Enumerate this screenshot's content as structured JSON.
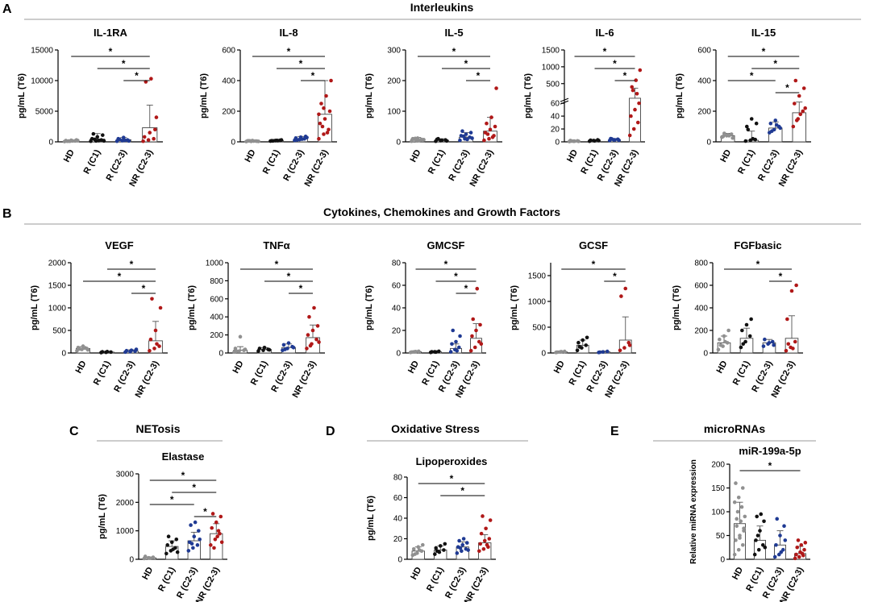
{
  "sections": {
    "A": {
      "letter": "A",
      "title": "Interleukins"
    },
    "B": {
      "letter": "B",
      "title": "Cytokines, Chemokines and Growth Factors"
    },
    "C": {
      "letter": "C",
      "title": "NETosis"
    },
    "D": {
      "letter": "D",
      "title": "Oxidative Stress"
    },
    "E": {
      "letter": "E",
      "title": "microRNAs"
    }
  },
  "colors": {
    "HD": "#909090",
    "R (C1)": "#111111",
    "R (C2-3)": "#1f3a93",
    "NR (C2-3)": "#b01818"
  },
  "chart_data": [
    {
      "type": "bar",
      "title": "IL-1RA",
      "ylabel": "pg/mL (T6)",
      "categories": [
        "HD",
        "R (C1)",
        "R (C2-3)",
        "NR (C2-3)"
      ],
      "ylim": [
        0,
        15000
      ],
      "yticks": [
        0,
        5000,
        10000,
        15000
      ],
      "tick_labels": [
        "0",
        "5000",
        "10000",
        "15000"
      ],
      "values": [
        150,
        450,
        350,
        2300
      ],
      "errors": [
        120,
        900,
        350,
        3700
      ],
      "points": [
        [
          50,
          100,
          150,
          200,
          250,
          300,
          100,
          150,
          200,
          120
        ],
        [
          100,
          150,
          300,
          500,
          800,
          1100,
          1300,
          200,
          150,
          400
        ],
        [
          100,
          200,
          300,
          500,
          700,
          150,
          400,
          250
        ],
        [
          100,
          300,
          500,
          800,
          1500,
          2000,
          9800,
          10300,
          4000
        ]
      ],
      "comparisons": [
        [
          0,
          3
        ],
        [
          1,
          3
        ],
        [
          2,
          3
        ]
      ],
      "significance": "*"
    },
    {
      "type": "bar",
      "title": "IL-8",
      "ylabel": "pg/mL (T6)",
      "categories": [
        "HD",
        "R (C1)",
        "R (C2-3)",
        "NR (C2-3)"
      ],
      "ylim": [
        0,
        600
      ],
      "yticks": [
        0,
        200,
        400,
        600
      ],
      "tick_labels": [
        "0",
        "200",
        "400",
        "600"
      ],
      "values": [
        5,
        8,
        20,
        180
      ],
      "errors": [
        5,
        8,
        15,
        220
      ],
      "points": [
        [
          2,
          3,
          5,
          6,
          8,
          4,
          7,
          5,
          3,
          6
        ],
        [
          5,
          8,
          10,
          7,
          9,
          12,
          6,
          8
        ],
        [
          10,
          15,
          20,
          25,
          30,
          35,
          12,
          18,
          28
        ],
        [
          20,
          50,
          80,
          120,
          150,
          200,
          250,
          300,
          400,
          100,
          60,
          180,
          220
        ]
      ],
      "comparisons": [
        [
          0,
          3
        ],
        [
          1,
          3
        ],
        [
          2,
          3
        ]
      ],
      "significance": "*"
    },
    {
      "type": "bar",
      "title": "IL-5",
      "ylabel": "pg/mL (T6)",
      "categories": [
        "HD",
        "R (C1)",
        "R (C2-3)",
        "NR (C2-3)"
      ],
      "ylim": [
        0,
        300
      ],
      "yticks": [
        0,
        100,
        200,
        300
      ],
      "tick_labels": [
        "0",
        "100",
        "200",
        "300"
      ],
      "values": [
        8,
        5,
        15,
        35
      ],
      "errors": [
        6,
        5,
        15,
        45
      ],
      "points": [
        [
          2,
          5,
          8,
          10,
          12,
          6,
          9,
          4,
          7,
          11
        ],
        [
          2,
          4,
          6,
          8,
          5,
          3,
          10
        ],
        [
          5,
          10,
          15,
          20,
          25,
          30,
          35,
          8,
          12,
          18
        ],
        [
          5,
          10,
          20,
          30,
          40,
          50,
          60,
          80,
          175,
          25,
          15
        ]
      ],
      "comparisons": [
        [
          0,
          3
        ],
        [
          1,
          3
        ],
        [
          2,
          3
        ]
      ],
      "significance": "*"
    },
    {
      "type": "bar",
      "title": "IL-6",
      "ylabel": "pg/mL (T6)",
      "categories": [
        "HD",
        "R (C1)",
        "R (C2-3)",
        "NR (C2-3)"
      ],
      "yscale": "broken",
      "ylim": [
        0,
        1500
      ],
      "yticks": [
        0,
        20,
        40,
        60,
        500,
        1000,
        1500
      ],
      "tick_labels": [
        "0",
        "20",
        "40",
        "60",
        "500",
        "1000",
        "1500"
      ],
      "values": [
        1,
        2,
        3,
        65
      ],
      "errors": [
        1,
        1,
        2,
        300
      ],
      "points": [
        [
          0.5,
          1,
          1.5,
          2,
          1,
          0.8,
          1.2
        ],
        [
          1,
          2,
          3,
          2.5,
          1.5,
          2
        ],
        [
          2,
          3,
          4,
          5,
          3,
          2.5,
          4.5
        ],
        [
          10,
          20,
          30,
          40,
          50,
          60,
          400,
          600,
          900,
          300,
          200
        ]
      ],
      "comparisons": [
        [
          0,
          3
        ],
        [
          1,
          3
        ],
        [
          2,
          3
        ]
      ],
      "significance": "*"
    },
    {
      "type": "bar",
      "title": "IL-15",
      "ylabel": "pg/mL (T6)",
      "categories": [
        "HD",
        "R (C1)",
        "R (C2-3)",
        "NR (C2-3)"
      ],
      "ylim": [
        0,
        600
      ],
      "yticks": [
        0,
        200,
        400,
        600
      ],
      "tick_labels": [
        "0",
        "200",
        "400",
        "600"
      ],
      "values": [
        40,
        10,
        90,
        190
      ],
      "errors": [
        15,
        60,
        40,
        70
      ],
      "points": [
        [
          30,
          40,
          50,
          35,
          45,
          25,
          55,
          40
        ],
        [
          5,
          10,
          15,
          100,
          150,
          120,
          80,
          20
        ],
        [
          60,
          80,
          100,
          120,
          140,
          90,
          70,
          110
        ],
        [
          100,
          150,
          200,
          250,
          300,
          350,
          400,
          180,
          220,
          140
        ]
      ],
      "comparisons": [
        [
          0,
          3
        ],
        [
          1,
          3
        ],
        [
          0,
          2
        ],
        [
          2,
          3
        ]
      ],
      "significance": "*"
    },
    {
      "type": "bar",
      "title": "VEGF",
      "ylabel": "pg/mL (T6)",
      "categories": [
        "HD",
        "R (C1)",
        "R (C2-3)",
        "NR (C2-3)"
      ],
      "ylim": [
        0,
        2000
      ],
      "yticks": [
        0,
        500,
        1000,
        1500,
        2000
      ],
      "tick_labels": [
        "0",
        "500",
        "1000",
        "1500",
        "2000"
      ],
      "values": [
        100,
        20,
        40,
        270
      ],
      "errors": [
        40,
        20,
        30,
        430
      ],
      "points": [
        [
          50,
          80,
          100,
          120,
          150,
          70,
          90,
          110
        ],
        [
          10,
          15,
          20,
          25,
          30
        ],
        [
          20,
          30,
          40,
          50,
          60,
          80
        ],
        [
          50,
          100,
          150,
          300,
          500,
          1000,
          1200,
          200
        ]
      ],
      "comparisons": [
        [
          1,
          3
        ],
        [
          0,
          3
        ],
        [
          2,
          3
        ]
      ],
      "significance": "*"
    },
    {
      "type": "bar",
      "title": "TNFα",
      "ylabel": "pg/mL (T6)",
      "categories": [
        "HD",
        "R (C1)",
        "R (C2-3)",
        "NR (C2-3)"
      ],
      "ylim": [
        0,
        1000
      ],
      "yticks": [
        0,
        200,
        400,
        600,
        800,
        1000
      ],
      "tick_labels": [
        "0",
        "200",
        "400",
        "600",
        "800",
        "1000"
      ],
      "values": [
        30,
        40,
        60,
        170
      ],
      "errors": [
        40,
        20,
        40,
        140
      ],
      "points": [
        [
          10,
          20,
          30,
          50,
          180,
          40,
          20
        ],
        [
          20,
          30,
          40,
          50,
          60,
          35
        ],
        [
          30,
          50,
          70,
          90,
          110,
          60,
          40
        ],
        [
          50,
          100,
          150,
          200,
          250,
          300,
          400,
          500,
          120,
          80
        ]
      ],
      "comparisons": [
        [
          0,
          3
        ],
        [
          1,
          3
        ],
        [
          2,
          3
        ]
      ],
      "significance": "*"
    },
    {
      "type": "bar",
      "title": "GMCSF",
      "ylabel": "pg/mL (T6)",
      "categories": [
        "HD",
        "R (C1)",
        "R (C2-3)",
        "NR (C2-3)"
      ],
      "ylim": [
        0,
        80
      ],
      "yticks": [
        0,
        20,
        40,
        60,
        80
      ],
      "tick_labels": [
        "0",
        "20",
        "40",
        "60",
        "80"
      ],
      "values": [
        1,
        1,
        4,
        13
      ],
      "errors": [
        1,
        1,
        4,
        13
      ],
      "points": [
        [
          0.5,
          1,
          1.5,
          0.8,
          1.2
        ],
        [
          0.5,
          1,
          1.5,
          1,
          0.8
        ],
        [
          1,
          3,
          5,
          8,
          10,
          15,
          20,
          2
        ],
        [
          2,
          5,
          10,
          15,
          20,
          25,
          30,
          57,
          8
        ]
      ],
      "comparisons": [
        [
          0,
          3
        ],
        [
          1,
          3
        ],
        [
          2,
          3
        ]
      ],
      "significance": "*"
    },
    {
      "type": "bar",
      "title": "GCSF",
      "ylabel": "pg/mL (T6)",
      "categories": [
        "HD",
        "R (C1)",
        "R (C2-3)",
        "NR (C2-3)"
      ],
      "ylim": [
        0,
        1750
      ],
      "yticks": [
        0,
        500,
        1000,
        1500
      ],
      "tick_labels": [
        "0",
        "500",
        "1000",
        "1500"
      ],
      "values": [
        20,
        150,
        20,
        250
      ],
      "errors": [
        20,
        100,
        20,
        450
      ],
      "points": [
        [
          10,
          20,
          30,
          15,
          25
        ],
        [
          50,
          100,
          150,
          200,
          250,
          300,
          120
        ],
        [
          10,
          20,
          30,
          15
        ],
        [
          50,
          100,
          200,
          1100,
          1250,
          150
        ]
      ],
      "comparisons": [
        [
          0,
          3
        ],
        [
          2,
          3
        ]
      ],
      "significance": "*"
    },
    {
      "type": "bar",
      "title": "FGFbasic",
      "ylabel": "pg/mL (T6)",
      "categories": [
        "HD",
        "R (C1)",
        "R (C2-3)",
        "NR (C2-3)"
      ],
      "ylim": [
        0,
        800
      ],
      "yticks": [
        0,
        200,
        400,
        600,
        800
      ],
      "tick_labels": [
        "0",
        "200",
        "400",
        "600",
        "800"
      ],
      "values": [
        90,
        130,
        90,
        130
      ],
      "errors": [
        60,
        90,
        30,
        200
      ],
      "points": [
        [
          30,
          60,
          90,
          120,
          150,
          200,
          70,
          100
        ],
        [
          50,
          100,
          150,
          200,
          250,
          300,
          80
        ],
        [
          60,
          80,
          100,
          120,
          90,
          70
        ],
        [
          20,
          50,
          100,
          300,
          550,
          600,
          80,
          40
        ]
      ],
      "comparisons": [
        [
          0,
          3
        ],
        [
          2,
          3
        ]
      ],
      "significance": "*"
    },
    {
      "type": "bar",
      "title": "Elastase",
      "ylabel": "pg/mL (T6)",
      "categories": [
        "HD",
        "R (C1)",
        "R (C2-3)",
        "NR (C2-3)"
      ],
      "ylim": [
        0,
        3000
      ],
      "yticks": [
        0,
        1000,
        2000,
        3000
      ],
      "tick_labels": [
        "0",
        "1000",
        "2000",
        "3000"
      ],
      "values": [
        50,
        450,
        650,
        900
      ],
      "errors": [
        30,
        200,
        300,
        350
      ],
      "points": [
        [
          30,
          50,
          70,
          100,
          40
        ],
        [
          200,
          300,
          400,
          500,
          600,
          700,
          800,
          350,
          250
        ],
        [
          300,
          400,
          500,
          600,
          800,
          1000,
          1200,
          1300,
          700,
          550
        ],
        [
          500,
          700,
          900,
          1100,
          1300,
          1500,
          1600,
          800,
          600,
          400,
          1000
        ]
      ],
      "comparisons": [
        [
          0,
          3
        ],
        [
          1,
          3
        ],
        [
          0,
          2
        ],
        [
          2,
          3
        ]
      ],
      "significance": "*"
    },
    {
      "type": "bar",
      "title": "Lipoperoxides",
      "ylabel": "pg/mL (T6)",
      "categories": [
        "HD",
        "R (C1)",
        "R (C2-3)",
        "NR (C2-3)"
      ],
      "ylim": [
        0,
        80
      ],
      "yticks": [
        0,
        20,
        40,
        60,
        80
      ],
      "tick_labels": [
        "0",
        "20",
        "40",
        "60",
        "80"
      ],
      "values": [
        8,
        9,
        12,
        16
      ],
      "errors": [
        4,
        4,
        5,
        8
      ],
      "points": [
        [
          4,
          6,
          8,
          10,
          12,
          14,
          5,
          9
        ],
        [
          5,
          7,
          9,
          11,
          13,
          15,
          8
        ],
        [
          6,
          8,
          10,
          12,
          14,
          16,
          18,
          20,
          9,
          11
        ],
        [
          8,
          10,
          12,
          15,
          18,
          20,
          25,
          30,
          38,
          42,
          14
        ]
      ],
      "comparisons": [
        [
          0,
          3
        ],
        [
          1,
          3
        ]
      ],
      "significance": "*"
    },
    {
      "type": "bar",
      "title": "miR-199a-5p",
      "ylabel": "Relative miRNA expression",
      "categories": [
        "HD",
        "R (C1)",
        "R (C2-3)",
        "NR (C2-3)"
      ],
      "ylim": [
        0,
        200
      ],
      "yticks": [
        0,
        50,
        100,
        150,
        200
      ],
      "tick_labels": [
        "0",
        "50",
        "100",
        "150",
        "200"
      ],
      "values": [
        75,
        40,
        30,
        12
      ],
      "errors": [
        45,
        30,
        30,
        15
      ],
      "points": [
        [
          10,
          20,
          30,
          40,
          50,
          60,
          70,
          80,
          90,
          100,
          110,
          120,
          130,
          150,
          160,
          45,
          65,
          85
        ],
        [
          10,
          20,
          30,
          40,
          60,
          80,
          90,
          95,
          25,
          50
        ],
        [
          5,
          10,
          20,
          30,
          50,
          70,
          85,
          15,
          40
        ],
        [
          2,
          5,
          8,
          10,
          15,
          20,
          25,
          30,
          35,
          40,
          12
        ]
      ],
      "comparisons": [
        [
          0,
          3
        ]
      ],
      "significance": "*"
    }
  ]
}
